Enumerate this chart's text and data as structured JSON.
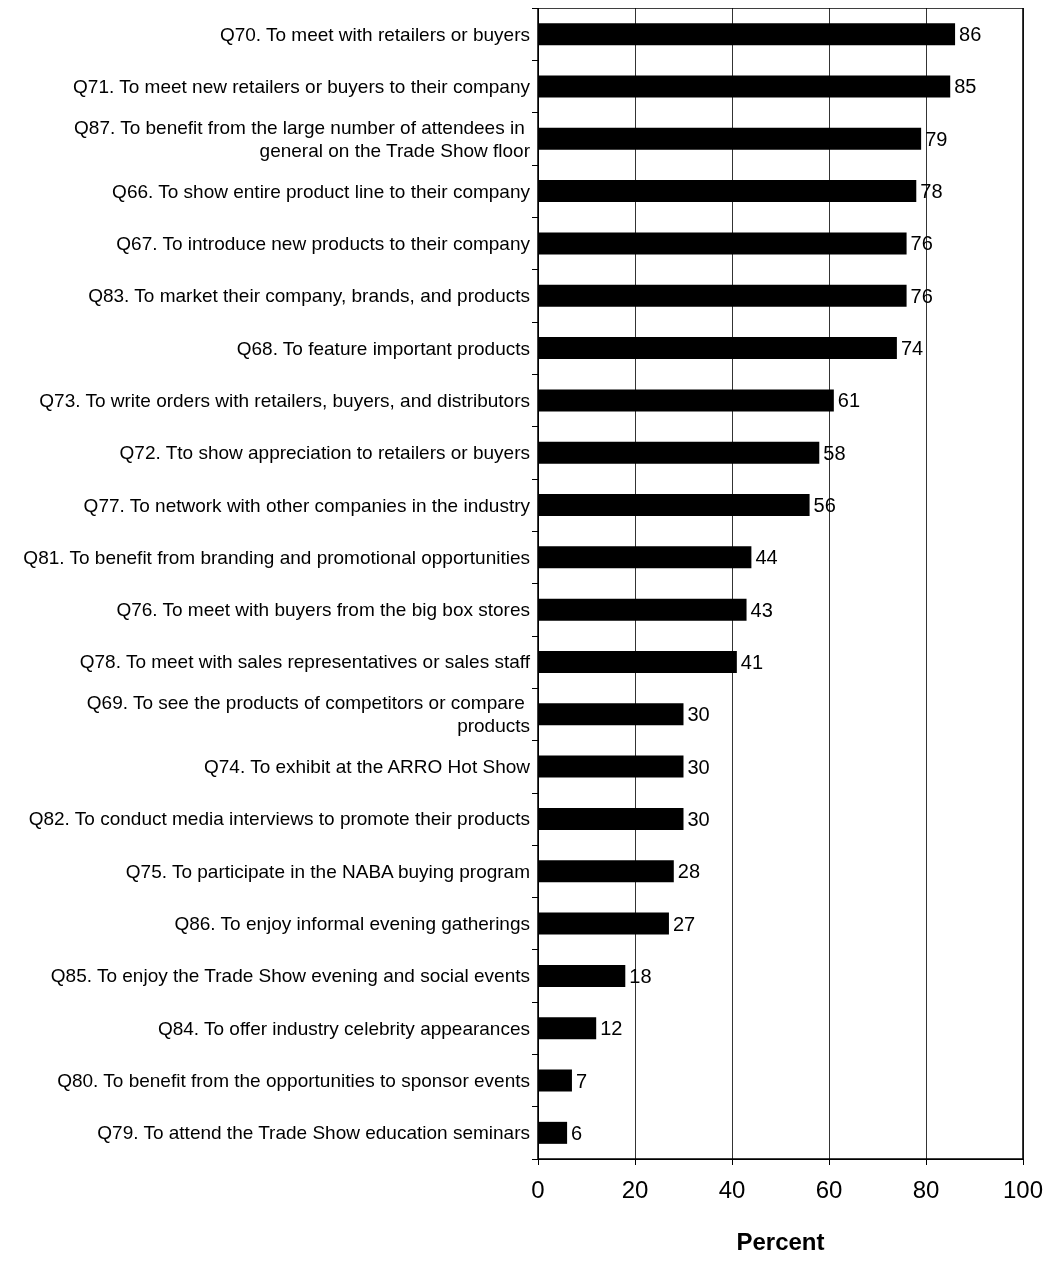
{
  "chart_data": {
    "type": "bar",
    "orientation": "horizontal",
    "xlabel": "Percent",
    "categories": [
      "Q70. To meet with retailers or buyers",
      "Q71. To meet new retailers or buyers to their company",
      "Q87. To benefit from the large number of attendees in general on the Trade Show floor",
      "Q66. To show entire product line to their company",
      "Q67. To introduce new products to their company",
      "Q83. To market their company, brands, and products",
      "Q68. To feature important products",
      "Q73. To write orders with retailers, buyers, and distributors",
      "Q72. Tto show appreciation to retailers or buyers",
      "Q77. To network with other companies in the industry",
      "Q81. To benefit from branding and promotional opportunities",
      "Q76. To meet with buyers from the big box stores",
      "Q78. To meet with sales representatives or sales staff",
      "Q69. To see the products of competitors or compare products",
      "Q74. To exhibit at the ARRO Hot Show",
      "Q82. To conduct media interviews to promote their products",
      "Q75. To participate in the NABA buying program",
      "Q86. To enjoy informal evening gatherings",
      "Q85. To enjoy the Trade Show evening and social events",
      "Q84. To offer industry celebrity appearances",
      "Q80. To benefit from the opportunities to sponsor events",
      "Q79. To attend the Trade Show education seminars"
    ],
    "values": [
      86,
      85,
      79,
      78,
      76,
      76,
      74,
      61,
      58,
      56,
      44,
      43,
      41,
      30,
      30,
      30,
      28,
      27,
      18,
      12,
      7,
      6
    ],
    "color": "#000000",
    "data_labels": true,
    "xlim": [
      0,
      100
    ],
    "xticks": [
      0,
      20,
      40,
      60,
      80,
      100
    ],
    "grid": "x"
  }
}
